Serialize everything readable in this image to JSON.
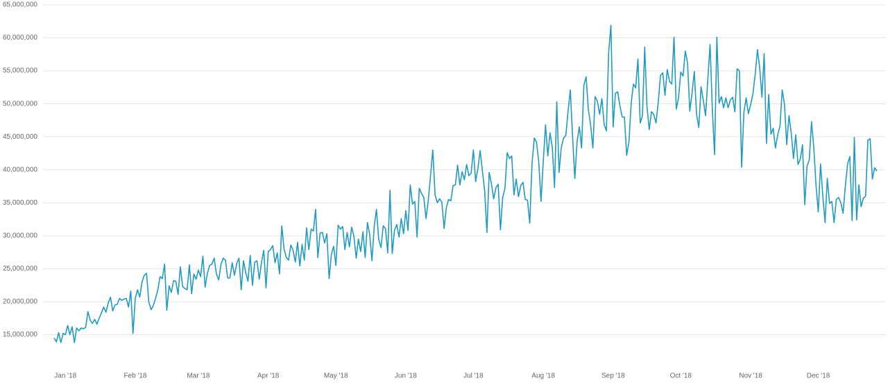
{
  "chart_data": {
    "type": "line",
    "color": "#1f9ac0",
    "grid": true,
    "ylim": [
      10000000,
      65000000
    ],
    "yticks": [
      {
        "value": 15000000,
        "label": "15,000,000"
      },
      {
        "value": 20000000,
        "label": "20,000,000"
      },
      {
        "value": 25000000,
        "label": "25,000,000"
      },
      {
        "value": 30000000,
        "label": "30,000,000"
      },
      {
        "value": 35000000,
        "label": "35,000,000"
      },
      {
        "value": 40000000,
        "label": "40,000,000"
      },
      {
        "value": 45000000,
        "label": "45,000,000"
      },
      {
        "value": 50000000,
        "label": "50,000,000"
      },
      {
        "value": 55000000,
        "label": "55,000,000"
      },
      {
        "value": 60000000,
        "label": "60,000,000"
      },
      {
        "value": 65000000,
        "label": "65,000,000"
      }
    ],
    "categories": [
      null,
      null,
      null,
      null,
      null,
      "Jan '18",
      null,
      null,
      null,
      null,
      null,
      null,
      null,
      null,
      null,
      null,
      null,
      null,
      null,
      null,
      null,
      null,
      null,
      null,
      null,
      null,
      null,
      null,
      null,
      null,
      null,
      null,
      null,
      null,
      null,
      null,
      "Feb '18",
      null,
      null,
      null,
      null,
      null,
      null,
      null,
      null,
      null,
      null,
      null,
      null,
      null,
      null,
      null,
      null,
      null,
      null,
      null,
      null,
      null,
      null,
      null,
      null,
      null,
      null,
      null,
      "Mar '18",
      null,
      null,
      null,
      null,
      null,
      null,
      null,
      null,
      null,
      null,
      null,
      null,
      null,
      null,
      null,
      null,
      null,
      null,
      null,
      null,
      null,
      null,
      null,
      null,
      null,
      null,
      null,
      null,
      null,
      null,
      "Apr '18",
      null,
      null,
      null,
      null,
      null,
      null,
      null,
      null,
      null,
      null,
      null,
      null,
      null,
      null,
      null,
      null,
      null,
      null,
      null,
      null,
      null,
      null,
      null,
      null,
      null,
      null,
      null,
      null,
      null,
      "May '18",
      null,
      null,
      null,
      null,
      null,
      null,
      null,
      null,
      null,
      null,
      null,
      null,
      null,
      null,
      null,
      null,
      null,
      null,
      null,
      null,
      null,
      null,
      null,
      null,
      null,
      null,
      null,
      null,
      null,
      null,
      "Jun '18",
      null,
      null,
      null,
      null,
      null,
      null,
      null,
      null,
      null,
      null,
      null,
      null,
      null,
      null,
      null,
      null,
      null,
      null,
      null,
      null,
      null,
      null,
      null,
      null,
      null,
      null,
      null,
      null,
      null,
      "Jul '18",
      null,
      null,
      null,
      null,
      null,
      null,
      null,
      null,
      null,
      null,
      null,
      null,
      null,
      null,
      null,
      null,
      null,
      null,
      null,
      null,
      null,
      null,
      null,
      null,
      null,
      null,
      null,
      null,
      null,
      null,
      "Aug '18",
      null,
      null,
      null,
      null,
      null,
      null,
      null,
      null,
      null,
      null,
      null,
      null,
      null,
      null,
      null,
      null,
      null,
      null,
      null,
      null,
      null,
      null,
      null,
      null,
      null,
      null,
      null,
      null,
      null,
      null,
      "Sep '18",
      null,
      null,
      null,
      null,
      null,
      null,
      null,
      null,
      null,
      null,
      null,
      null,
      null,
      null,
      null,
      null,
      null,
      null,
      null,
      null,
      null,
      null,
      null,
      null,
      null,
      null,
      null,
      null,
      null,
      "Oct '18",
      null,
      null,
      null,
      null,
      null,
      null,
      null,
      null,
      null,
      null,
      null,
      null,
      null,
      null,
      null,
      null,
      null,
      null,
      null,
      null,
      null,
      null,
      null,
      null,
      null,
      null,
      null,
      null,
      null,
      null,
      "Nov '18",
      null,
      null,
      null,
      null,
      null,
      null,
      null,
      null,
      null,
      null,
      null,
      null,
      null,
      null,
      null,
      null,
      null,
      null,
      null,
      null,
      null,
      null,
      null,
      null,
      null,
      null,
      null,
      null,
      null,
      "Dec '18",
      null,
      null,
      null,
      null,
      null,
      null,
      null,
      null,
      null,
      null,
      null,
      null,
      null,
      null,
      null,
      null,
      null,
      null,
      null,
      null,
      null,
      null,
      null,
      null,
      null,
      null
    ],
    "values": [
      14500000,
      13900000,
      15300000,
      13800000,
      15200000,
      15000000,
      16400000,
      15000000,
      16200000,
      13800000,
      16000000,
      15600000,
      16000000,
      15900000,
      16100000,
      18500000,
      17200000,
      16700000,
      17300000,
      16600000,
      17500000,
      18300000,
      19200000,
      18400000,
      19800000,
      20700000,
      18600000,
      19500000,
      19600000,
      20500000,
      20200000,
      20400000,
      20500000,
      19200000,
      21600000,
      15200000,
      20500000,
      21800000,
      20700000,
      23000000,
      24000000,
      24300000,
      20000000,
      18800000,
      19400000,
      20500000,
      21800000,
      23800000,
      23500000,
      25700000,
      18700000,
      22400000,
      21400000,
      23200000,
      23100000,
      21100000,
      25300000,
      22300000,
      22000000,
      21800000,
      25600000,
      21200000,
      24200000,
      23400000,
      24800000,
      23800000,
      26900000,
      22200000,
      24300000,
      25500000,
      25700000,
      26600000,
      24200000,
      23300000,
      25600000,
      26600000,
      26300000,
      23600000,
      23600000,
      25900000,
      24000000,
      25800000,
      26600000,
      21800000,
      26200000,
      24400000,
      23100000,
      27000000,
      22500000,
      26000000,
      26200000,
      23400000,
      26000000,
      27800000,
      22100000,
      27600000,
      27900000,
      28500000,
      25900000,
      27400000,
      24200000,
      31500000,
      28000000,
      26700000,
      26300000,
      28600000,
      27800000,
      26000000,
      29000000,
      25400000,
      28700000,
      26300000,
      31200000,
      27900000,
      31000000,
      30700000,
      34000000,
      26700000,
      30400000,
      30500000,
      28900000,
      30300000,
      23500000,
      27200000,
      28400000,
      25500000,
      31600000,
      31000000,
      31400000,
      27900000,
      30500000,
      28300000,
      31300000,
      29900000,
      26600000,
      29500000,
      27600000,
      30600000,
      26700000,
      32000000,
      30200000,
      26200000,
      31400000,
      34000000,
      29400000,
      28200000,
      31500000,
      31100000,
      27400000,
      36900000,
      27300000,
      30800000,
      31700000,
      29800000,
      32600000,
      30300000,
      33800000,
      30800000,
      37700000,
      34800000,
      35200000,
      29800000,
      37200000,
      36400000,
      35800000,
      32600000,
      35400000,
      39200000,
      43000000,
      36200000,
      35000000,
      35600000,
      35100000,
      31100000,
      34300000,
      35500000,
      35300000,
      37600000,
      37700000,
      40700000,
      37700000,
      39700000,
      38500000,
      40800000,
      39100000,
      39500000,
      43000000,
      38200000,
      40200000,
      42900000,
      39800000,
      36800000,
      30500000,
      39600000,
      37900000,
      35600000,
      37300000,
      37800000,
      30900000,
      35800000,
      37200000,
      42600000,
      41700000,
      42100000,
      36200000,
      38600000,
      35900000,
      37600000,
      38100000,
      35500000,
      35400000,
      31900000,
      40900000,
      44800000,
      44200000,
      41200000,
      35200000,
      41300000,
      46800000,
      42100000,
      45600000,
      43400000,
      37300000,
      50300000,
      39600000,
      43400000,
      44800000,
      45200000,
      48900000,
      52100000,
      45000000,
      38700000,
      44300000,
      46500000,
      43300000,
      52800000,
      54100000,
      49100000,
      46800000,
      43300000,
      51100000,
      50400000,
      48400000,
      50800000,
      46900000,
      45900000,
      57800000,
      61900000,
      46500000,
      51600000,
      51800000,
      49700000,
      48000000,
      48000000,
      42200000,
      44200000,
      50100000,
      53000000,
      52400000,
      56800000,
      47100000,
      48200000,
      58600000,
      49600000,
      46100000,
      48800000,
      48400000,
      47100000,
      50200000,
      54300000,
      54700000,
      51300000,
      55200000,
      53400000,
      53000000,
      60100000,
      49200000,
      50900000,
      54800000,
      54200000,
      58000000,
      56200000,
      48900000,
      51600000,
      54900000,
      48400000,
      46400000,
      52600000,
      50500000,
      48200000,
      53700000,
      59000000,
      49100000,
      42300000,
      60100000,
      50100000,
      51100000,
      49400000,
      50900000,
      49400000,
      50600000,
      51000000,
      48800000,
      55300000,
      55000000,
      40400000,
      48700000,
      50900000,
      48500000,
      49900000,
      51500000,
      54400000,
      58200000,
      55500000,
      51000000,
      57600000,
      44000000,
      51400000,
      45400000,
      46300000,
      43300000,
      45300000,
      46600000,
      52100000,
      49900000,
      43800000,
      48200000,
      45600000,
      41700000,
      45300000,
      40800000,
      41600000,
      43800000,
      34700000,
      40500000,
      41500000,
      47300000,
      43400000,
      37600000,
      33600000,
      40900000,
      36100000,
      32000000,
      38700000,
      34900000,
      35200000,
      32000000,
      35500000,
      35800000,
      35000000,
      33400000,
      37500000,
      40900000,
      42000000,
      32300000,
      44900000,
      32400000,
      37700000,
      34400000,
      35700000,
      36000000,
      44500000,
      44700000,
      38600000,
      40300000,
      39800000
    ]
  }
}
